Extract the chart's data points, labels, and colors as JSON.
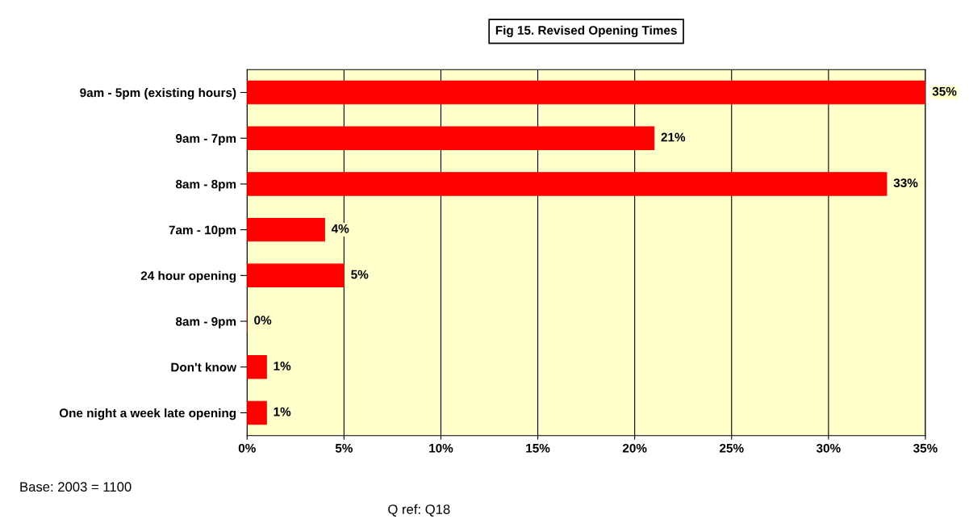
{
  "chart_data": {
    "type": "bar",
    "orientation": "horizontal",
    "title": "Fig 15. Revised Opening Times",
    "categories": [
      "9am - 5pm (existing hours)",
      "9am - 7pm",
      "8am - 8pm",
      "7am - 10pm",
      "24 hour opening",
      "8am - 9pm",
      "Don't know",
      "One night a week late opening"
    ],
    "values": [
      35,
      21,
      33,
      4,
      5,
      0,
      1,
      1
    ],
    "value_labels": [
      "35%",
      "21%",
      "33%",
      "4%",
      "5%",
      "0%",
      "1%",
      "1%"
    ],
    "color": "#ff0000",
    "xlim": [
      0,
      35
    ],
    "xticks": [
      {
        "value": 0,
        "label": "0%"
      },
      {
        "value": 5,
        "label": "5%"
      },
      {
        "value": 10,
        "label": "10%"
      },
      {
        "value": 15,
        "label": "15%"
      },
      {
        "value": 20,
        "label": "20%"
      },
      {
        "value": 25,
        "label": "25%"
      },
      {
        "value": 30,
        "label": "30%"
      },
      {
        "value": 35,
        "label": "35%"
      }
    ],
    "grid": "x",
    "annotations": [
      "Base: 2003 = 1100",
      "Q ref: Q18"
    ]
  }
}
